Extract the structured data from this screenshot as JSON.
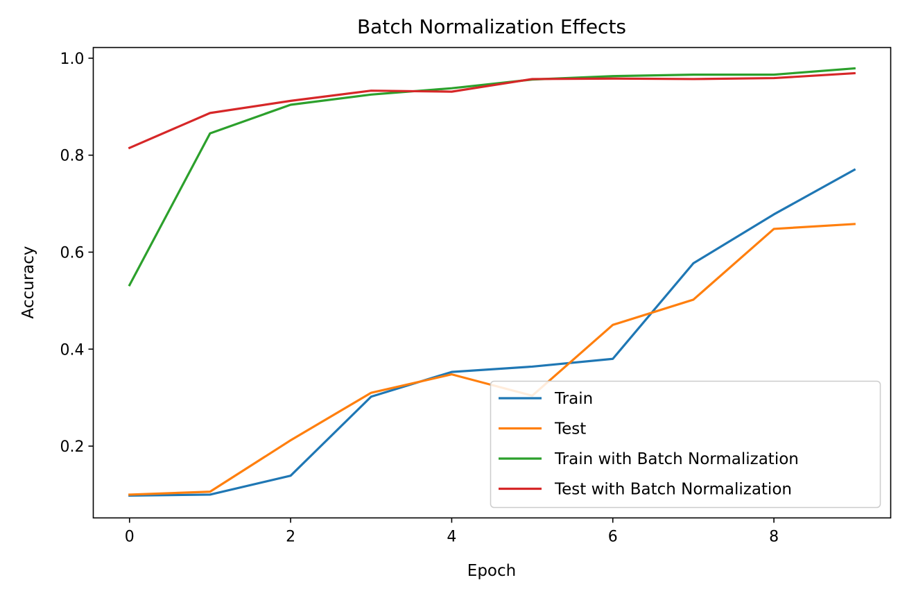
{
  "chart_data": {
    "type": "line",
    "title": "Batch Normalization Effects",
    "xlabel": "Epoch",
    "ylabel": "Accuracy",
    "x": [
      0,
      1,
      2,
      3,
      4,
      5,
      6,
      7,
      8,
      9
    ],
    "xlim": [
      -0.45,
      9.45
    ],
    "ylim": [
      0.052,
      1.022
    ],
    "xticks": [
      0,
      2,
      4,
      6,
      8
    ],
    "yticks": [
      0.2,
      0.4,
      0.6,
      0.8,
      1.0
    ],
    "xtick_labels": [
      "0",
      "2",
      "4",
      "6",
      "8"
    ],
    "ytick_labels": [
      "0.2",
      "0.4",
      "0.6",
      "0.8",
      "1.0"
    ],
    "grid": false,
    "legend_position": "bottom-right",
    "series": [
      {
        "name": "Train",
        "color": "#1f77b4",
        "values": [
          0.098,
          0.1,
          0.139,
          0.302,
          0.353,
          0.364,
          0.38,
          0.577,
          0.678,
          0.77
        ]
      },
      {
        "name": "Test",
        "color": "#ff7f0e",
        "values": [
          0.1,
          0.106,
          0.212,
          0.31,
          0.348,
          0.304,
          0.45,
          0.502,
          0.648,
          0.658
        ]
      },
      {
        "name": "Train with Batch Normalization",
        "color": "#2ca02c",
        "values": [
          0.532,
          0.845,
          0.904,
          0.925,
          0.938,
          0.956,
          0.963,
          0.966,
          0.966,
          0.979
        ]
      },
      {
        "name": "Test with Batch Normalization",
        "color": "#d62728",
        "values": [
          0.815,
          0.887,
          0.912,
          0.933,
          0.931,
          0.957,
          0.958,
          0.957,
          0.959,
          0.969
        ]
      }
    ]
  }
}
